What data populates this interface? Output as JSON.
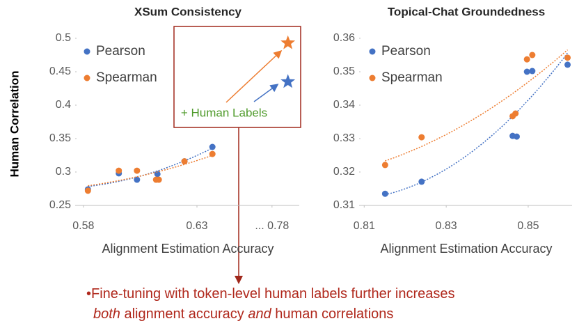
{
  "chart_data": [
    {
      "type": "scatter",
      "title": "XSum Consistency",
      "xlabel": "Alignment Estimation Accuracy",
      "ylabel": "Human Correlation",
      "xlim": [
        0.577,
        0.792
      ],
      "xticks": [
        0.58,
        0.63,
        {
          "value": 0.78,
          "label": "... 0.78"
        }
      ],
      "ylim": [
        0.25,
        0.5
      ],
      "yticks": [
        0.25,
        0.3,
        0.35,
        0.4,
        0.45,
        0.5
      ],
      "series": [
        {
          "name": "Pearson",
          "color": "#4472c4",
          "x": [
            0.582,
            0.5956,
            0.6036,
            0.6126,
            0.6245,
            0.6368
          ],
          "values": [
            0.274,
            0.298,
            0.2885,
            0.297,
            0.316,
            0.3375
          ]
        },
        {
          "name": "Spearman",
          "color": "#ed7d31",
          "x": [
            0.582,
            0.5956,
            0.6036,
            0.612,
            0.6132,
            0.6245,
            0.6368
          ],
          "values": [
            0.272,
            0.302,
            0.302,
            0.2885,
            0.2885,
            0.316,
            0.327
          ]
        }
      ],
      "human_labels": {
        "label": "+ Human Labels",
        "x": 0.787,
        "values": [
          0.435,
          0.493
        ]
      }
    },
    {
      "type": "scatter",
      "title": "Topical-Chat Groundedness",
      "xlabel": "Alignment Estimation Accuracy",
      "xlim": [
        0.8091,
        0.8607
      ],
      "xticks": [
        0.81,
        0.83,
        0.85
      ],
      "ylim": [
        0.31,
        0.36
      ],
      "yticks": [
        0.31,
        0.32,
        0.33,
        0.34,
        0.35,
        0.36
      ],
      "series": [
        {
          "name": "Pearson",
          "color": "#4472c4",
          "x": [
            0.8151,
            0.824,
            0.8462,
            0.8472,
            0.8497,
            0.851,
            0.8596
          ],
          "values": [
            0.3135,
            0.3171,
            0.3308,
            0.3306,
            0.35,
            0.3502,
            0.3521
          ]
        },
        {
          "name": "Spearman",
          "color": "#ed7d31",
          "x": [
            0.8151,
            0.824,
            0.8462,
            0.8469,
            0.8497,
            0.851,
            0.8596
          ],
          "values": [
            0.3221,
            0.3304,
            0.3367,
            0.3375,
            0.3537,
            0.355,
            0.3542
          ]
        }
      ]
    }
  ],
  "note": {
    "bullet": "•",
    "line1": "Fine-tuning with token-level human labels further increases",
    "line2": [
      "both",
      " alignment accuracy ",
      "and",
      " human correlations"
    ]
  }
}
